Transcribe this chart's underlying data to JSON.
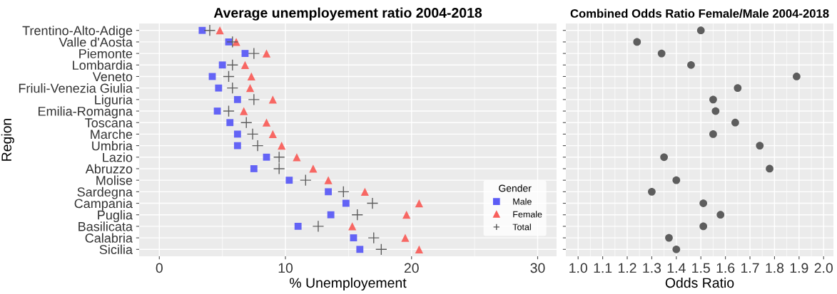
{
  "chart_data": [
    {
      "type": "scatter",
      "orientation": "horizontal",
      "title": "Average unemployement ratio 2004-2018",
      "xlabel": "% Unemployement",
      "ylabel": "Region",
      "legend_title": "Gender",
      "legend": "bottom right",
      "grid": true,
      "categories": [
        "Trentino-Alto-Adige",
        "Valle d'Aosta",
        "Piemonte",
        "Lombardia",
        "Veneto",
        "Friuli-Venezia Giulia",
        "Liguria",
        "Emilia-Romagna",
        "Toscana",
        "Marche",
        "Umbria",
        "Lazio",
        "Abruzzo",
        "Molise",
        "Sardegna",
        "Campania",
        "Puglia",
        "Basilicata",
        "Calabria",
        "Sicilia"
      ],
      "xlim": [
        -1.6,
        31.5
      ],
      "xticks": [
        0,
        10,
        20,
        30
      ],
      "series": [
        {
          "name": "Male",
          "color": "#5c5cf5",
          "marker": "square",
          "values": [
            3.4,
            5.5,
            6.8,
            5.0,
            4.2,
            4.7,
            6.2,
            4.6,
            5.6,
            6.2,
            6.2,
            8.5,
            7.5,
            10.3,
            13.4,
            14.8,
            13.6,
            11.0,
            15.4,
            15.9
          ]
        },
        {
          "name": "Female",
          "color": "#f8605c",
          "marker": "triangle",
          "values": [
            4.8,
            6.1,
            8.5,
            6.8,
            7.3,
            7.2,
            9.0,
            6.7,
            8.5,
            9.0,
            9.7,
            10.9,
            12.2,
            13.4,
            16.3,
            20.6,
            19.6,
            15.3,
            19.5,
            20.6
          ]
        },
        {
          "name": "Total",
          "color": "#555555",
          "marker": "cross",
          "values": [
            4.0,
            5.8,
            7.5,
            5.8,
            5.5,
            5.8,
            7.5,
            5.5,
            6.9,
            7.4,
            7.8,
            9.5,
            9.5,
            11.6,
            14.6,
            16.9,
            15.7,
            12.6,
            17.0,
            17.6
          ]
        }
      ]
    },
    {
      "type": "scatter",
      "orientation": "horizontal",
      "title": "Combined Odds Ratio Female/Male 2004-2018",
      "xlabel": "Odds Ratio",
      "grid": true,
      "marker": "circle",
      "categories": [
        null,
        null,
        null,
        null,
        null,
        null,
        null,
        null,
        null,
        null,
        null,
        null,
        null,
        null,
        null,
        null,
        null,
        null,
        null,
        null
      ],
      "xlim": [
        0.95,
        2.04
      ],
      "xticks": [
        {
          "value": 1.0,
          "label": "1.0"
        },
        1.1,
        1.2,
        1.3,
        1.4,
        1.5,
        1.6,
        1.7,
        1.8,
        1.9,
        {
          "value": 2.0,
          "label": "2.0"
        }
      ],
      "series": [
        {
          "color": "#555555",
          "values": [
            1.5,
            1.24,
            1.34,
            1.46,
            1.89,
            1.65,
            1.55,
            1.56,
            1.64,
            1.55,
            1.74,
            1.35,
            1.78,
            1.4,
            1.3,
            1.51,
            1.58,
            1.51,
            1.37,
            1.4
          ]
        }
      ]
    }
  ]
}
